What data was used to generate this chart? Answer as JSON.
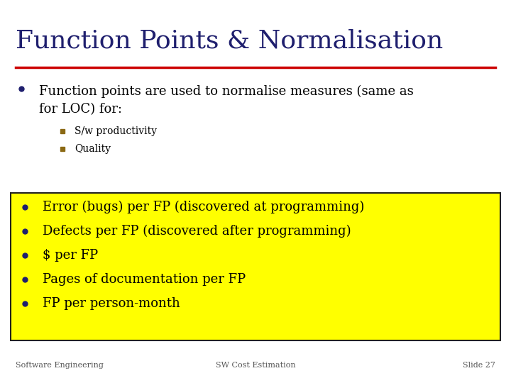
{
  "title": "Function Points & Normalisation",
  "title_color": "#1F1F6E",
  "title_fontsize": 26,
  "background_color": "#FFFFFF",
  "red_line_color": "#CC0000",
  "main_bullet": "Function points are used to normalise measures (same as\nfor LOC) for:",
  "sub_bullets": [
    "S/w productivity",
    "Quality"
  ],
  "yellow_box_color": "#FFFF00",
  "yellow_box_border": "#222222",
  "yellow_bullets": [
    "Error (bugs) per FP (discovered at programming)",
    "Defects per FP (discovered after programming)",
    "$ per FP",
    "Pages of documentation per FP",
    "FP per person-month"
  ],
  "bullet_color": "#1F1F6E",
  "text_color": "#000000",
  "footer_left": "Software Engineering",
  "footer_center": "SW Cost Estimation",
  "footer_right": "Slide 27",
  "footer_color": "#555555",
  "footer_fontsize": 8,
  "main_bullet_fontsize": 13,
  "sub_bullet_fontsize": 10,
  "yellow_bullet_fontsize": 13
}
